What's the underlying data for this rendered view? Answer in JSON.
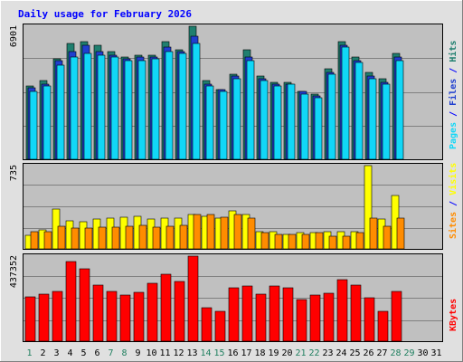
{
  "chart_data": {
    "type": "bar",
    "title": "Daily usage for February 2026",
    "days": [
      "1",
      "2",
      "3",
      "4",
      "5",
      "6",
      "7",
      "8",
      "9",
      "10",
      "11",
      "12",
      "13",
      "14",
      "15",
      "16",
      "17",
      "18",
      "19",
      "20",
      "21",
      "22",
      "23",
      "24",
      "25",
      "26",
      "27",
      "28",
      "29",
      "30",
      "31"
    ],
    "weekend_days": [
      1,
      7,
      8,
      14,
      15,
      21,
      22,
      28,
      29
    ],
    "colors": {
      "hits": "#1f7f6f",
      "files": "#1f3fcf",
      "pages": "#11d7f7",
      "visits": "#ffff00",
      "sites": "#ff8c00",
      "kbytes": "#ff0000",
      "weekday_label": "#000000",
      "weekend_label": "#1f7f5f",
      "title": "#0000ff",
      "plot_bg": "#c0c0c0",
      "frame_bg": "#e0e0e0"
    },
    "panels": [
      {
        "id": "top",
        "ymax": 6901,
        "ymax_label": "6901",
        "ylabel_parts": [
          {
            "text": "Pages",
            "color": "#11d7f7"
          },
          {
            "text": " / ",
            "color": "#0000ff"
          },
          {
            "text": "Files",
            "color": "#1f3fcf"
          },
          {
            "text": " / ",
            "color": "#0000ff"
          },
          {
            "text": "Hits",
            "color": "#1f7f6f"
          }
        ],
        "series": [
          {
            "name": "Hits",
            "values": [
              3800,
              4100,
              5200,
              6000,
              6100,
              5900,
              5600,
              5300,
              5400,
              5400,
              6100,
              5700,
              6901,
              4100,
              3600,
              4400,
              5700,
              4300,
              4000,
              4000,
              3500,
              3400,
              4700,
              6100,
              5300,
              4500,
              4200,
              5500,
              null,
              null,
              null
            ]
          },
          {
            "name": "Files",
            "values": [
              3700,
              3900,
              5100,
              5600,
              5900,
              5600,
              5400,
              5200,
              5300,
              5300,
              5800,
              5600,
              6400,
              3900,
              3600,
              4300,
              5300,
              4200,
              3900,
              3900,
              3500,
              3300,
              4500,
              5900,
              5100,
              4300,
              4000,
              5300,
              null,
              null,
              null
            ]
          },
          {
            "name": "Pages",
            "values": [
              3500,
              3800,
              4900,
              5300,
              5500,
              5400,
              5300,
              5100,
              5100,
              5200,
              5600,
              5500,
              6000,
              3800,
              3500,
              4200,
              5100,
              4100,
              3800,
              3900,
              3400,
              3200,
              4400,
              5800,
              5000,
              4200,
              3900,
              5100,
              null,
              null,
              null
            ]
          }
        ]
      },
      {
        "id": "middle",
        "ymax": 735,
        "ymax_label": "735",
        "ylabel_parts": [
          {
            "text": "Sites",
            "color": "#ff8c00"
          },
          {
            "text": " / ",
            "color": "#0000ff"
          },
          {
            "text": "Visits",
            "color": "#ffff00"
          }
        ],
        "series": [
          {
            "name": "Visits",
            "values": [
              120,
              170,
              355,
              250,
              240,
              260,
              270,
              280,
              290,
              265,
              270,
              270,
              300,
              290,
              270,
              335,
              300,
              150,
              150,
              130,
              140,
              145,
              155,
              150,
              150,
              735,
              265,
              470,
              null,
              null,
              null
            ]
          },
          {
            "name": "Sites",
            "values": [
              150,
              155,
              200,
              180,
              180,
              190,
              190,
              200,
              210,
              195,
              200,
              210,
              300,
              300,
              280,
              300,
              270,
              140,
              130,
              130,
              130,
              145,
              110,
              110,
              145,
              270,
              200,
              270,
              null,
              null,
              null
            ]
          }
        ]
      },
      {
        "id": "bottom",
        "ymax": 437352,
        "ymax_label": "437352",
        "ylabel_parts": [
          {
            "text": "KBytes",
            "color": "#ff0000"
          }
        ],
        "series": [
          {
            "name": "KBytes",
            "values": [
              230000,
              240000,
              255000,
              410000,
              370000,
              290000,
              255000,
              235000,
              250000,
              300000,
              345000,
              305000,
              437352,
              170000,
              155000,
              275000,
              285000,
              240000,
              285000,
              275000,
              215000,
              235000,
              245000,
              315000,
              290000,
              225000,
              155000,
              255000,
              null,
              null,
              null
            ]
          }
        ]
      }
    ]
  }
}
